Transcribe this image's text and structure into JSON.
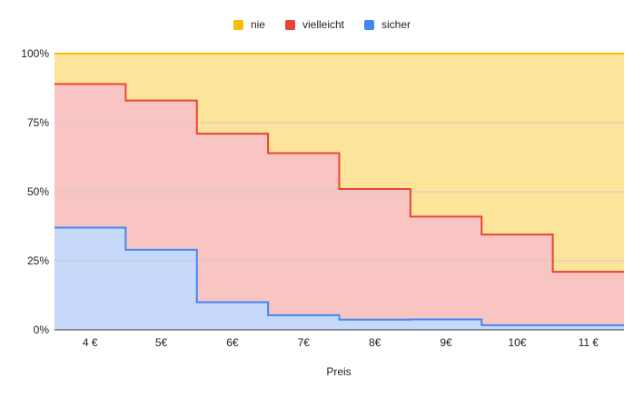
{
  "chart_data": {
    "type": "area",
    "stacked": true,
    "stepped": true,
    "categories": [
      "4 €",
      "5€",
      "6€",
      "7€",
      "8€",
      "9€",
      "10€",
      "11 €"
    ],
    "series": [
      {
        "name": "nie",
        "color": "#fbbc04",
        "fill": "#fde49b",
        "values": [
          0.11,
          0.17,
          0.29,
          0.36,
          0.49,
          0.59,
          0.655,
          0.79
        ]
      },
      {
        "name": "vielleicht",
        "color": "#ea4335",
        "fill": "#f8c5c2",
        "values": [
          0.52,
          0.54,
          0.61,
          0.587,
          0.473,
          0.372,
          0.328,
          0.193
        ]
      },
      {
        "name": "sicher",
        "color": "#4285f4",
        "fill": "#c6d9fb",
        "values": [
          0.37,
          0.29,
          0.1,
          0.053,
          0.037,
          0.038,
          0.017,
          0.017
        ]
      }
    ],
    "y_ticks": [
      "0%",
      "25%",
      "50%",
      "75%",
      "100%"
    ],
    "ylim": [
      0,
      1
    ],
    "xlabel": "Preis",
    "ylabel": "",
    "grid": true,
    "legend_position": "top"
  }
}
